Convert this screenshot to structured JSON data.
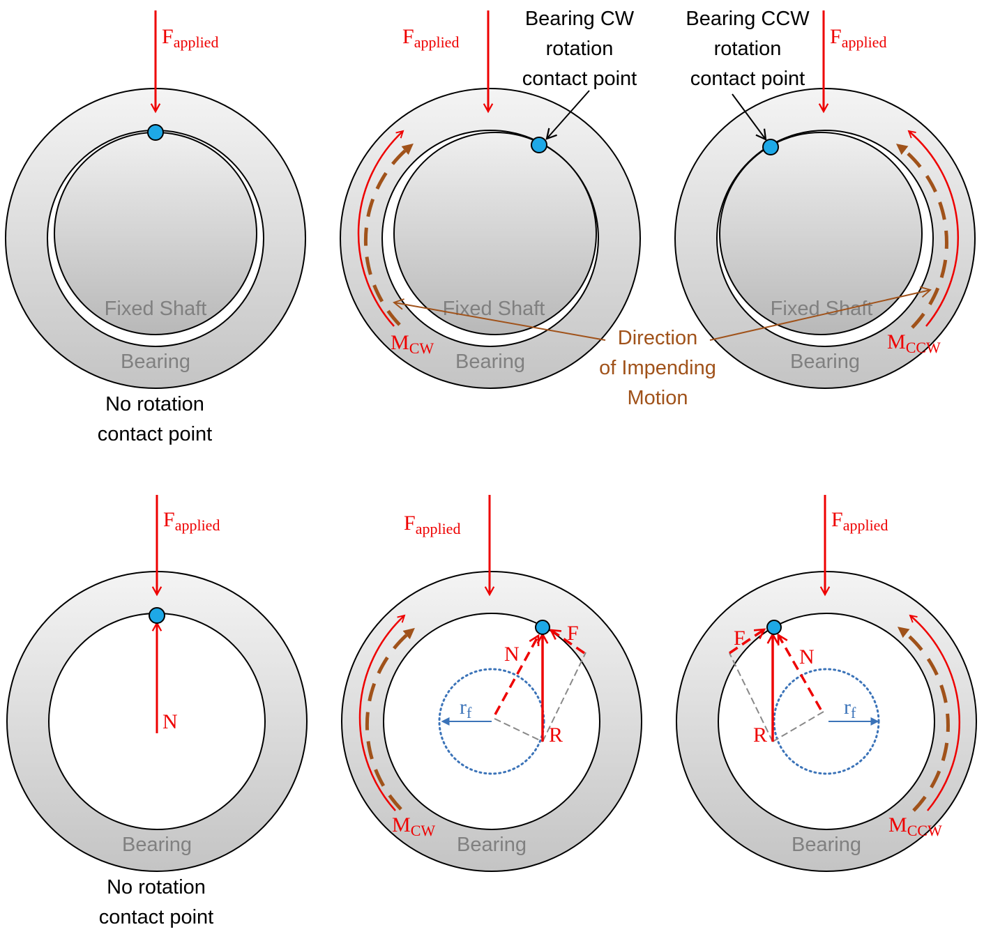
{
  "labels": {
    "f_main": "F",
    "f_sub": "applied",
    "fixed_shaft": "Fixed Shaft",
    "bearing": "Bearing",
    "no_rotation_1": "No rotation",
    "no_rotation_2": "contact point",
    "cw_contact_1": "Bearing CW",
    "cw_contact_2": "rotation",
    "cw_contact_3": "contact point",
    "ccw_contact_1": "Bearing CCW",
    "ccw_contact_2": "rotation",
    "ccw_contact_3": "contact point",
    "direction_1": "Direction",
    "direction_2": "of Impending",
    "direction_3": "Motion",
    "m_main": "M",
    "m_cw_sub": "CW",
    "m_ccw_sub": "CCW",
    "n": "N",
    "f_friction": "F",
    "r": "R",
    "r_f_main": "r",
    "r_f_sub": "f"
  },
  "colors": {
    "force_red": "#ee0000",
    "contact_blue": "#1ea8e6",
    "motion_brown": "#a0521a",
    "friction_circle_blue": "#3b73b8",
    "label_gray": "#808080"
  }
}
